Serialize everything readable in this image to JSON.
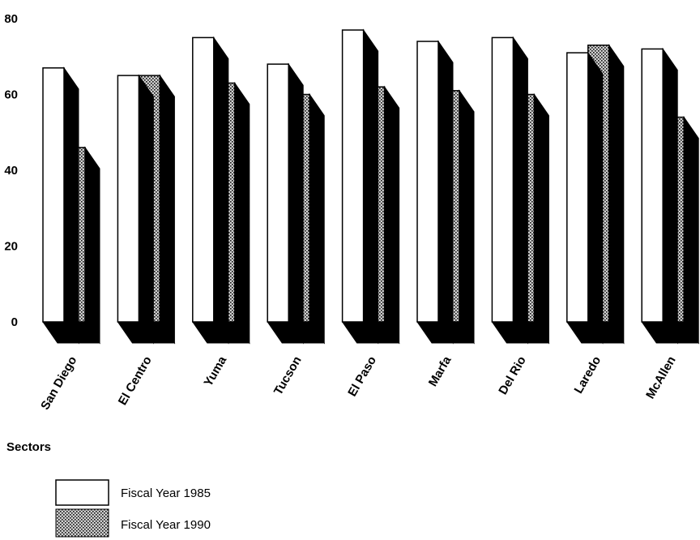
{
  "chart_data": {
    "type": "bar",
    "xlabel": "Sectors",
    "ylabel": "",
    "ylim": [
      0,
      80
    ],
    "yticks": [
      0,
      20,
      40,
      60,
      80
    ],
    "grid": false,
    "legend_position": "bottom-left",
    "categories": [
      "San Diego",
      "El Centro",
      "Yuma",
      "Tucson",
      "El Paso",
      "Marfa",
      "Del Rio",
      "Laredo",
      "McAllen"
    ],
    "series": [
      {
        "name": "Fiscal Year 1985",
        "values": [
          67,
          65,
          75,
          68,
          77,
          74,
          75,
          71,
          72
        ],
        "fill": "white",
        "color": "#ffffff"
      },
      {
        "name": "Fiscal Year 1990",
        "values": [
          46,
          65,
          63,
          60,
          62,
          61,
          60,
          73,
          54
        ],
        "fill": "stipple",
        "color": "#555555"
      }
    ]
  }
}
